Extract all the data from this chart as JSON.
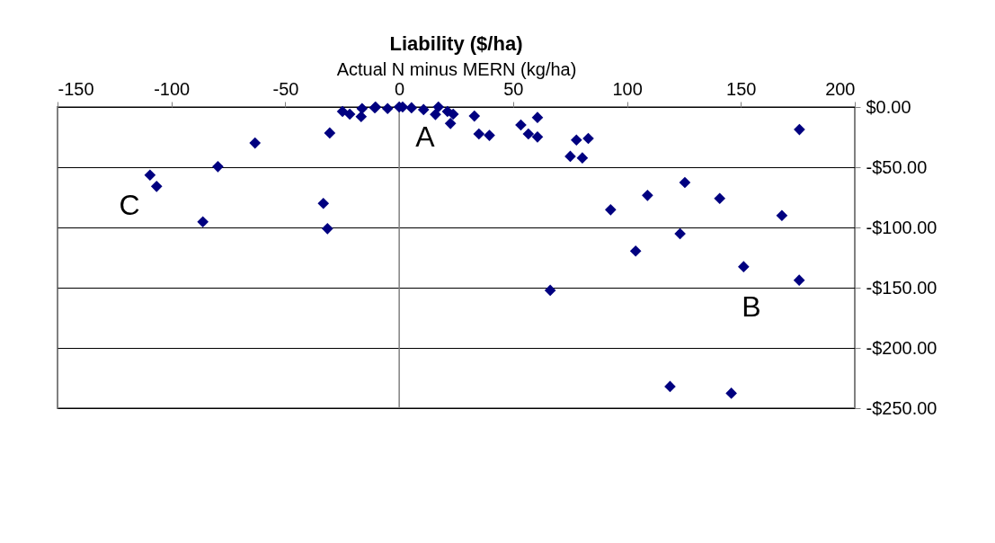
{
  "chart_data": {
    "type": "scatter",
    "title": "Liability ($/ha)",
    "xlabel": "Actual N minus MERN (kg/ha)",
    "x": [
      -109.4,
      -106.5,
      -79.6,
      -63.3,
      -86.2,
      -30.5,
      -33.3,
      -31.5,
      -24.9,
      -21.7,
      -16.7,
      -16.3,
      -10.7,
      -5.1,
      1.5,
      -10.4,
      0,
      5.4,
      10.7,
      17.2,
      15.9,
      21.2,
      22.5,
      23.7,
      33,
      35,
      39.6,
      53.4,
      60.7,
      60.7,
      56.7,
      77.8,
      83,
      75.1,
      80.4,
      66.3,
      92.8,
      109,
      125.4,
      140.7,
      168,
      103.8,
      123.3,
      151.2,
      175.6,
      118.9,
      145.8,
      175.7
    ],
    "series": [
      {
        "color": "#000080",
        "values": [
          -56.5,
          -65.9,
          -49.5,
          -29.9,
          -95.3,
          -21.6,
          -80,
          -101,
          -3.7,
          -6,
          -8,
          -1.3,
          -0.7,
          -1.3,
          0,
          0,
          0,
          -0.7,
          -2.2,
          0,
          -6.2,
          -3.7,
          -13.7,
          -6,
          -7.5,
          -22.4,
          -23.6,
          -14.9,
          -8.7,
          -24.9,
          -22.4,
          -27.4,
          -26.1,
          -41,
          -42.3,
          -152.2,
          -85.3,
          -73.4,
          -62.7,
          -75.9,
          -90.1,
          -119.6,
          -105.2,
          -132.6,
          -143.8,
          -232,
          -237.6,
          -18.7
        ]
      }
    ],
    "xlim": [
      -150,
      200
    ],
    "xticks": [
      -150,
      -100,
      -50,
      0,
      50,
      100,
      150,
      200
    ],
    "ylim": [
      -250,
      0
    ],
    "yticks": [
      {
        "value": 0,
        "label": "$0.00"
      },
      {
        "value": -50,
        "label": "-$50.00"
      },
      {
        "value": -100,
        "label": "-$100.00"
      },
      {
        "value": -150,
        "label": "-$150.00"
      },
      {
        "value": -200,
        "label": "-$200.00"
      },
      {
        "value": -250,
        "label": "-$250.00"
      }
    ],
    "grid": "y",
    "marker": "diamond",
    "ref_lines": [
      {
        "axis": "x",
        "value": 0,
        "color": "#808080"
      }
    ],
    "annotations": [
      "A",
      "B",
      "C"
    ]
  }
}
